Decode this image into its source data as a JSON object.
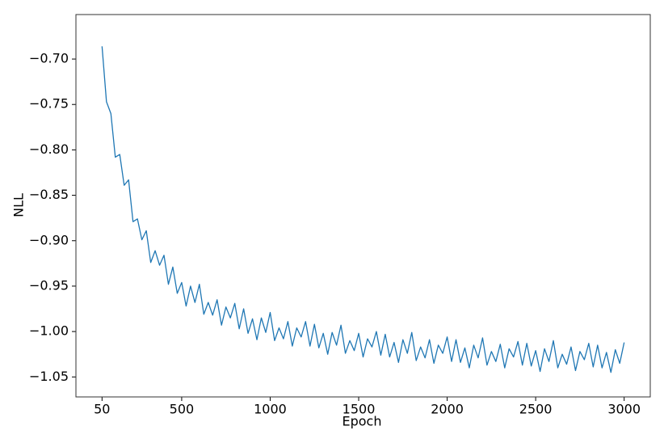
{
  "chart_data": {
    "type": "line",
    "x_label": "Epoch",
    "y_label": "NLL",
    "x": [
      50,
      75,
      100,
      125,
      150,
      175,
      200,
      225,
      250,
      275,
      300,
      325,
      350,
      375,
      400,
      425,
      450,
      475,
      500,
      525,
      550,
      575,
      600,
      625,
      650,
      675,
      700,
      725,
      750,
      775,
      800,
      825,
      850,
      875,
      900,
      925,
      950,
      975,
      1000,
      1025,
      1050,
      1075,
      1100,
      1125,
      1150,
      1175,
      1200,
      1225,
      1250,
      1275,
      1300,
      1325,
      1350,
      1375,
      1400,
      1425,
      1450,
      1475,
      1500,
      1525,
      1550,
      1575,
      1600,
      1625,
      1650,
      1675,
      1700,
      1725,
      1750,
      1775,
      1800,
      1825,
      1850,
      1875,
      1900,
      1925,
      1950,
      1975,
      2000,
      2025,
      2050,
      2075,
      2100,
      2125,
      2150,
      2175,
      2200,
      2225,
      2250,
      2275,
      2300,
      2325,
      2350,
      2375,
      2400,
      2425,
      2450,
      2475,
      2500,
      2525,
      2550,
      2575,
      2600,
      2625,
      2650,
      2675,
      2700,
      2725,
      2750,
      2775,
      2800,
      2825,
      2850,
      2875,
      2900,
      2925,
      2950,
      2975,
      3000
    ],
    "series": [
      {
        "color": "#1f77b4",
        "values": [
          -0.686,
          -0.747,
          -0.76,
          -0.808,
          -0.805,
          -0.839,
          -0.833,
          -0.879,
          -0.876,
          -0.899,
          -0.889,
          -0.924,
          -0.911,
          -0.927,
          -0.916,
          -0.948,
          -0.929,
          -0.958,
          -0.946,
          -0.972,
          -0.95,
          -0.968,
          -0.948,
          -0.981,
          -0.968,
          -0.982,
          -0.965,
          -0.993,
          -0.973,
          -0.985,
          -0.969,
          -0.997,
          -0.975,
          -1.002,
          -0.986,
          -1.009,
          -0.985,
          -1.001,
          -0.979,
          -1.01,
          -0.996,
          -1.008,
          -0.989,
          -1.016,
          -0.996,
          -1.006,
          -0.989,
          -1.016,
          -0.992,
          -1.018,
          -1.002,
          -1.025,
          -1.001,
          -1.015,
          -0.993,
          -1.024,
          -1.01,
          -1.021,
          -1.002,
          -1.028,
          -1.008,
          -1.017,
          -1.0,
          -1.026,
          -1.003,
          -1.028,
          -1.012,
          -1.034,
          -1.009,
          -1.024,
          -1.001,
          -1.032,
          -1.017,
          -1.029,
          -1.009,
          -1.035,
          -1.015,
          -1.024,
          -1.006,
          -1.033,
          -1.009,
          -1.034,
          -1.018,
          -1.04,
          -1.015,
          -1.029,
          -1.007,
          -1.037,
          -1.022,
          -1.033,
          -1.014,
          -1.04,
          -1.019,
          -1.028,
          -1.011,
          -1.037,
          -1.013,
          -1.038,
          -1.021,
          -1.044,
          -1.019,
          -1.033,
          -1.01,
          -1.04,
          -1.025,
          -1.036,
          -1.017,
          -1.043,
          -1.022,
          -1.031,
          -1.013,
          -1.039,
          -1.015,
          -1.04,
          -1.023,
          -1.045,
          -1.02,
          -1.035,
          -1.012
        ]
      }
    ],
    "xlim": [
      -97.5,
      3147.5
    ],
    "xticks": [
      500,
      1000,
      1500,
      2000,
      2500,
      3000,
      50
    ],
    "ylim": [
      -1.072,
      -0.651
    ],
    "yticks": [
      {
        "value": -1.05,
        "label": "−1.05"
      },
      {
        "value": -1.0,
        "label": "−1.00"
      },
      {
        "value": -0.95,
        "label": "−0.95"
      },
      {
        "value": -0.9,
        "label": "−0.90"
      },
      {
        "value": -0.85,
        "label": "−0.85"
      },
      {
        "value": -0.8,
        "label": "−0.80"
      },
      {
        "value": -0.75,
        "label": "−0.75"
      },
      {
        "value": -0.7,
        "label": "−0.70"
      }
    ],
    "grid": false
  }
}
